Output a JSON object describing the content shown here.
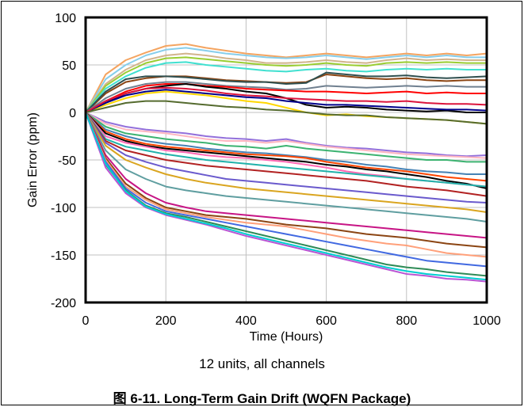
{
  "chart_data": {
    "type": "line",
    "title": "",
    "subtitle": "12 units, all channels",
    "caption": "图 6-11. Long-Term Gain Drift (WQFN Package)",
    "xlabel": "Time (Hours)",
    "ylabel": "Gain Error (ppm)",
    "xlim": [
      0,
      1000
    ],
    "ylim": [
      -200,
      100
    ],
    "xticks": [
      "0",
      "200",
      "400",
      "600",
      "800",
      "1000"
    ],
    "yticks": [
      "100",
      "50",
      "0",
      "-50",
      "-100",
      "-150",
      "-200"
    ],
    "grid": true,
    "legend": "none",
    "x": [
      0,
      50,
      100,
      150,
      200,
      250,
      300,
      350,
      400,
      450,
      500,
      550,
      600,
      650,
      700,
      750,
      800,
      850,
      900,
      950,
      1000
    ],
    "series": [
      {
        "color": "#f4a460",
        "values": [
          0,
          40,
          55,
          63,
          70,
          72,
          68,
          65,
          62,
          60,
          58,
          60,
          62,
          60,
          58,
          60,
          62,
          60,
          62,
          60,
          62
        ]
      },
      {
        "color": "#87ceeb",
        "values": [
          0,
          35,
          50,
          60,
          66,
          68,
          65,
          62,
          60,
          58,
          57,
          58,
          60,
          58,
          56,
          58,
          60,
          58,
          60,
          58,
          58
        ]
      },
      {
        "color": "#d2b48c",
        "values": [
          0,
          30,
          45,
          55,
          60,
          62,
          60,
          57,
          55,
          52,
          52,
          53,
          55,
          53,
          52,
          55,
          57,
          55,
          56,
          55,
          55
        ]
      },
      {
        "color": "#9acd32",
        "values": [
          0,
          28,
          42,
          52,
          57,
          58,
          56,
          54,
          52,
          50,
          49,
          50,
          52,
          50,
          49,
          52,
          53,
          52,
          53,
          52,
          52
        ]
      },
      {
        "color": "#40e0d0",
        "values": [
          0,
          25,
          38,
          47,
          52,
          53,
          50,
          48,
          46,
          44,
          43,
          45,
          46,
          44,
          43,
          45,
          46,
          45,
          46,
          45,
          45
        ]
      },
      {
        "color": "#8b4513",
        "values": [
          0,
          20,
          32,
          36,
          38,
          38,
          36,
          34,
          33,
          32,
          31,
          32,
          40,
          38,
          36,
          35,
          36,
          34,
          33,
          34,
          34
        ]
      },
      {
        "color": "#2f4f4f",
        "values": [
          0,
          22,
          35,
          38,
          38,
          37,
          35,
          33,
          32,
          32,
          30,
          31,
          42,
          40,
          38,
          38,
          39,
          37,
          36,
          37,
          38
        ]
      },
      {
        "color": "#708090",
        "values": [
          0,
          15,
          25,
          30,
          32,
          32,
          30,
          28,
          27,
          26,
          24,
          25,
          28,
          27,
          26,
          27,
          28,
          27,
          28,
          27,
          27
        ]
      },
      {
        "color": "#ff0000",
        "values": [
          0,
          12,
          22,
          28,
          30,
          30,
          28,
          27,
          25,
          24,
          23,
          22,
          22,
          21,
          20,
          21,
          22,
          20,
          21,
          20,
          20
        ]
      },
      {
        "color": "#000000",
        "values": [
          0,
          10,
          20,
          25,
          28,
          30,
          27,
          25,
          22,
          20,
          15,
          8,
          5,
          6,
          5,
          3,
          2,
          1,
          2,
          0,
          0
        ]
      },
      {
        "color": "#ffd700",
        "values": [
          0,
          8,
          15,
          20,
          22,
          20,
          18,
          15,
          12,
          10,
          5,
          0,
          -3,
          -2,
          -4,
          -5,
          -6,
          -7,
          -8,
          -10,
          -12
        ]
      },
      {
        "color": "#00008b",
        "values": [
          0,
          10,
          18,
          22,
          24,
          22,
          20,
          18,
          16,
          15,
          12,
          10,
          8,
          8,
          7,
          6,
          5,
          4,
          3,
          3,
          2
        ]
      },
      {
        "color": "#dc143c",
        "values": [
          0,
          12,
          20,
          25,
          26,
          25,
          23,
          20,
          18,
          17,
          15,
          14,
          13,
          12,
          12,
          11,
          12,
          10,
          9,
          9,
          8
        ]
      },
      {
        "color": "#556b2f",
        "values": [
          0,
          5,
          10,
          12,
          12,
          10,
          8,
          6,
          5,
          3,
          2,
          0,
          -2,
          -3,
          -3,
          -5,
          -6,
          -7,
          -8,
          -10,
          -12
        ]
      },
      {
        "color": "#9370db",
        "values": [
          0,
          -10,
          -15,
          -18,
          -20,
          -22,
          -25,
          -27,
          -28,
          -30,
          -28,
          -32,
          -35,
          -37,
          -38,
          -40,
          -42,
          -43,
          -45,
          -46,
          -45
        ]
      },
      {
        "color": "#ffb6c1",
        "values": [
          0,
          -12,
          -18,
          -20,
          -22,
          -25,
          -28,
          -30,
          -30,
          -32,
          -30,
          -33,
          -36,
          -38,
          -40,
          -42,
          -44,
          -45,
          -46,
          -47,
          -48
        ]
      },
      {
        "color": "#3cb371",
        "values": [
          0,
          -15,
          -22,
          -25,
          -28,
          -30,
          -32,
          -35,
          -36,
          -38,
          -35,
          -38,
          -40,
          -42,
          -44,
          -46,
          -48,
          -50,
          -50,
          -52,
          -52
        ]
      },
      {
        "color": "#4682b4",
        "values": [
          0,
          -18,
          -25,
          -30,
          -33,
          -35,
          -38,
          -40,
          -42,
          -43,
          -45,
          -47,
          -50,
          -52,
          -55,
          -57,
          -60,
          -62,
          -63,
          -65,
          -65
        ]
      },
      {
        "color": "#ff4500",
        "values": [
          0,
          -20,
          -28,
          -33,
          -36,
          -38,
          -40,
          -42,
          -44,
          -45,
          -46,
          -48,
          -52,
          -55,
          -58,
          -60,
          -62,
          -65,
          -68,
          -70,
          -72
        ]
      },
      {
        "color": "#000000",
        "values": [
          0,
          -22,
          -30,
          -35,
          -38,
          -40,
          -42,
          -44,
          -46,
          -48,
          -50,
          -52,
          -55,
          -57,
          -60,
          -62,
          -65,
          -68,
          -72,
          -75,
          -80
        ]
      },
      {
        "color": "#ff69b4",
        "values": [
          0,
          -25,
          -32,
          -36,
          -40,
          -42,
          -45,
          -47,
          -48,
          -50,
          -52,
          -55,
          -58,
          -62,
          -65,
          -67,
          -70,
          -72,
          -74,
          -76,
          -78
        ]
      },
      {
        "color": "#20b2aa",
        "values": [
          0,
          -28,
          -36,
          -40,
          -44,
          -47,
          -50,
          -52,
          -54,
          -56,
          -58,
          -60,
          -62,
          -64,
          -66,
          -68,
          -70,
          -72,
          -74,
          -76,
          -78
        ]
      },
      {
        "color": "#b22222",
        "values": [
          0,
          -30,
          -40,
          -45,
          -50,
          -53,
          -56,
          -58,
          -60,
          -62,
          -64,
          -66,
          -68,
          -70,
          -72,
          -75,
          -78,
          -80,
          -82,
          -85,
          -88
        ]
      },
      {
        "color": "#6a5acd",
        "values": [
          0,
          -32,
          -45,
          -52,
          -58,
          -62,
          -66,
          -70,
          -72,
          -74,
          -76,
          -78,
          -80,
          -82,
          -84,
          -86,
          -88,
          -90,
          -92,
          -94,
          -95
        ]
      },
      {
        "color": "#daa520",
        "values": [
          0,
          -35,
          -50,
          -58,
          -65,
          -70,
          -74,
          -77,
          -80,
          -82,
          -84,
          -86,
          -88,
          -90,
          -92,
          -94,
          -96,
          -98,
          -100,
          -102,
          -105
        ]
      },
      {
        "color": "#5f9ea0",
        "values": [
          0,
          -40,
          -60,
          -70,
          -78,
          -82,
          -85,
          -88,
          -90,
          -92,
          -94,
          -96,
          -98,
          -100,
          -102,
          -104,
          -106,
          -108,
          -110,
          -112,
          -115
        ]
      },
      {
        "color": "#c71585",
        "values": [
          0,
          -45,
          -70,
          -85,
          -95,
          -100,
          -104,
          -106,
          -108,
          -110,
          -112,
          -114,
          -116,
          -118,
          -120,
          -122,
          -124,
          -126,
          -128,
          -130,
          -132
        ]
      },
      {
        "color": "#8b4513",
        "values": [
          0,
          -48,
          -75,
          -90,
          -100,
          -104,
          -108,
          -110,
          -112,
          -115,
          -118,
          -120,
          -122,
          -125,
          -128,
          -130,
          -132,
          -135,
          -138,
          -140,
          -142
        ]
      },
      {
        "color": "#ffa07a",
        "values": [
          0,
          -50,
          -78,
          -92,
          -102,
          -106,
          -110,
          -113,
          -116,
          -118,
          -120,
          -124,
          -128,
          -132,
          -135,
          -138,
          -140,
          -144,
          -148,
          -150,
          -152
        ]
      },
      {
        "color": "#4169e1",
        "values": [
          0,
          -52,
          -80,
          -95,
          -104,
          -108,
          -112,
          -116,
          -120,
          -124,
          -128,
          -132,
          -136,
          -140,
          -144,
          -148,
          -152,
          -156,
          -158,
          -160,
          -162
        ]
      },
      {
        "color": "#2e8b57",
        "values": [
          0,
          -55,
          -82,
          -98,
          -106,
          -110,
          -115,
          -120,
          -125,
          -130,
          -135,
          -140,
          -145,
          -150,
          -155,
          -160,
          -163,
          -165,
          -168,
          -170,
          -172
        ]
      },
      {
        "color": "#ba55d3",
        "values": [
          0,
          -58,
          -85,
          -100,
          -108,
          -113,
          -118,
          -124,
          -130,
          -135,
          -140,
          -145,
          -150,
          -155,
          -160,
          -165,
          -170,
          -172,
          -175,
          -176,
          -178
        ]
      },
      {
        "color": "#00ced1",
        "values": [
          0,
          -54,
          -83,
          -99,
          -107,
          -112,
          -117,
          -122,
          -128,
          -133,
          -138,
          -143,
          -148,
          -153,
          -158,
          -163,
          -167,
          -170,
          -172,
          -174,
          -176
        ]
      }
    ]
  }
}
